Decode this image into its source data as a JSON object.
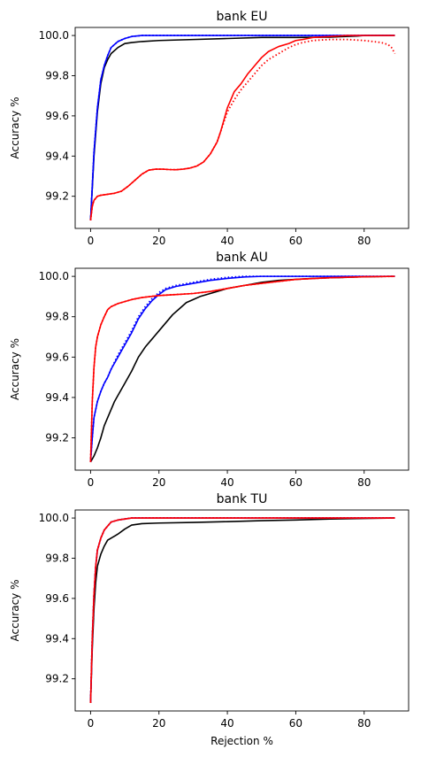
{
  "chart_data": [
    {
      "type": "line",
      "title": "bank EU",
      "xlabel": "",
      "ylabel": "Accuracy %",
      "xlim": [
        -4.5,
        93
      ],
      "ylim": [
        99.04,
        100.04
      ],
      "xticks": [
        0,
        20,
        40,
        60,
        80
      ],
      "yticks": [
        99.2,
        99.4,
        99.6,
        99.8,
        100.0
      ],
      "ytick_labels": [
        "99.2",
        "99.4",
        "99.6",
        "99.8",
        "100.0"
      ],
      "grid": false,
      "series": [
        {
          "color": "#000000",
          "style": "solid",
          "x": [
            0,
            1,
            2,
            3,
            4,
            5,
            6,
            8,
            10,
            12,
            15,
            20,
            30,
            40,
            50,
            60,
            70,
            78,
            80,
            89
          ],
          "y": [
            99.08,
            99.4,
            99.62,
            99.76,
            99.84,
            99.88,
            99.91,
            99.94,
            99.96,
            99.965,
            99.97,
            99.975,
            99.98,
            99.985,
            99.99,
            99.99,
            99.992,
            99.997,
            100.0,
            100.0
          ]
        },
        {
          "color": "#0000ff",
          "style": "solid",
          "x": [
            0,
            1,
            2,
            3,
            4,
            5,
            6,
            8,
            10,
            12,
            15,
            20,
            30,
            89
          ],
          "y": [
            99.08,
            99.42,
            99.64,
            99.78,
            99.85,
            99.9,
            99.94,
            99.97,
            99.985,
            99.995,
            100.0,
            100.0,
            100.0,
            100.0
          ]
        },
        {
          "color": "#0000ff",
          "style": "dotted",
          "x": [
            0,
            1,
            2,
            3,
            4,
            5,
            6,
            8,
            10,
            12,
            15,
            20,
            30,
            89
          ],
          "y": [
            99.08,
            99.42,
            99.64,
            99.78,
            99.85,
            99.9,
            99.94,
            99.97,
            99.985,
            99.995,
            100.0,
            100.0,
            100.0,
            100.0
          ]
        },
        {
          "color": "#ff0000",
          "style": "solid",
          "x": [
            0,
            0.5,
            1,
            2,
            3,
            5,
            7,
            9,
            11,
            13,
            15,
            17,
            19,
            21,
            23,
            25,
            27,
            29,
            31,
            33,
            35,
            36,
            37,
            38,
            39,
            40,
            42,
            44,
            46,
            48,
            50,
            52,
            55,
            58,
            60,
            62,
            65,
            70,
            75,
            80,
            85,
            89
          ],
          "y": [
            99.08,
            99.15,
            99.18,
            99.2,
            99.205,
            99.21,
            99.215,
            99.225,
            99.25,
            99.28,
            99.31,
            99.33,
            99.335,
            99.335,
            99.333,
            99.332,
            99.335,
            99.34,
            99.35,
            99.37,
            99.41,
            99.44,
            99.47,
            99.52,
            99.58,
            99.64,
            99.72,
            99.76,
            99.81,
            99.85,
            99.89,
            99.92,
            99.945,
            99.96,
            99.975,
            99.98,
            99.99,
            99.995,
            100.0,
            100.0,
            100.0,
            100.0
          ]
        },
        {
          "color": "#ff0000",
          "style": "dotted",
          "x": [
            0,
            0.5,
            1,
            2,
            3,
            5,
            7,
            9,
            11,
            13,
            15,
            17,
            19,
            21,
            23,
            25,
            27,
            29,
            31,
            33,
            35,
            36,
            37,
            38,
            39,
            40,
            42,
            44,
            46,
            48,
            50,
            52,
            55,
            58,
            60,
            62,
            65,
            70,
            75,
            80,
            85,
            87,
            88,
            89
          ],
          "y": [
            99.08,
            99.15,
            99.18,
            99.2,
            99.205,
            99.21,
            99.215,
            99.225,
            99.25,
            99.28,
            99.31,
            99.33,
            99.335,
            99.335,
            99.333,
            99.332,
            99.335,
            99.34,
            99.35,
            99.37,
            99.41,
            99.44,
            99.47,
            99.52,
            99.57,
            99.62,
            99.68,
            99.73,
            99.77,
            99.81,
            99.85,
            99.88,
            99.91,
            99.94,
            99.955,
            99.965,
            99.975,
            99.98,
            99.98,
            99.975,
            99.965,
            99.955,
            99.94,
            99.91
          ]
        }
      ]
    },
    {
      "type": "line",
      "title": "bank AU",
      "xlabel": "",
      "ylabel": "Accuracy %",
      "xlim": [
        -4.5,
        93
      ],
      "ylim": [
        99.04,
        100.04
      ],
      "xticks": [
        0,
        20,
        40,
        60,
        80
      ],
      "yticks": [
        99.2,
        99.4,
        99.6,
        99.8,
        100.0
      ],
      "ytick_labels": [
        "99.2",
        "99.4",
        "99.6",
        "99.8",
        "100.0"
      ],
      "grid": false,
      "series": [
        {
          "color": "#000000",
          "style": "solid",
          "x": [
            0,
            1,
            2,
            3,
            4,
            5,
            6,
            7,
            8,
            10,
            12,
            14,
            16,
            18,
            20,
            22,
            24,
            26,
            28,
            30,
            32,
            35,
            38,
            40,
            45,
            50,
            55,
            60,
            65,
            70,
            75,
            80,
            89
          ],
          "y": [
            99.08,
            99.11,
            99.15,
            99.2,
            99.26,
            99.3,
            99.34,
            99.38,
            99.41,
            99.47,
            99.53,
            99.6,
            99.65,
            99.69,
            99.73,
            99.77,
            99.81,
            99.84,
            99.87,
            99.885,
            99.9,
            99.915,
            99.93,
            99.94,
            99.955,
            99.97,
            99.98,
            99.985,
            99.99,
            99.993,
            99.995,
            99.998,
            100.0
          ]
        },
        {
          "color": "#0000ff",
          "style": "solid",
          "x": [
            0,
            0.5,
            1,
            2,
            3,
            4,
            5,
            6,
            8,
            10,
            12,
            14,
            16,
            18,
            20,
            22,
            25,
            30,
            35,
            40,
            45,
            50,
            60,
            89
          ],
          "y": [
            99.08,
            99.2,
            99.3,
            99.38,
            99.43,
            99.47,
            99.5,
            99.54,
            99.6,
            99.66,
            99.72,
            99.79,
            99.84,
            99.88,
            99.91,
            99.935,
            99.95,
            99.965,
            99.98,
            99.99,
            99.997,
            100.0,
            100.0,
            100.0
          ]
        },
        {
          "color": "#0000ff",
          "style": "dotted",
          "x": [
            0,
            0.5,
            1,
            2,
            3,
            4,
            5,
            6,
            8,
            10,
            12,
            14,
            16,
            18,
            20,
            22,
            25,
            30,
            35,
            40,
            45,
            50,
            60,
            89
          ],
          "y": [
            99.08,
            99.2,
            99.3,
            99.38,
            99.43,
            99.47,
            99.5,
            99.54,
            99.61,
            99.67,
            99.73,
            99.8,
            99.85,
            99.89,
            99.92,
            99.94,
            99.955,
            99.97,
            99.985,
            99.995,
            100.0,
            100.0,
            100.0,
            100.0
          ]
        },
        {
          "color": "#ff0000",
          "style": "solid",
          "x": [
            0,
            0.5,
            1,
            1.5,
            2,
            3,
            4,
            5,
            6,
            8,
            10,
            12,
            15,
            20,
            25,
            30,
            35,
            40,
            45,
            50,
            55,
            60,
            70,
            80,
            89
          ],
          "y": [
            99.08,
            99.38,
            99.55,
            99.65,
            99.7,
            99.76,
            99.8,
            99.835,
            99.85,
            99.865,
            99.875,
            99.885,
            99.895,
            99.905,
            99.91,
            99.915,
            99.925,
            99.94,
            99.955,
            99.965,
            99.975,
            99.985,
            99.993,
            99.998,
            100.0
          ]
        },
        {
          "color": "#ff0000",
          "style": "dotted",
          "x": [
            0,
            0.5,
            1,
            1.5,
            2,
            3,
            4,
            5,
            6,
            8,
            10,
            12,
            15,
            20,
            25,
            30,
            35,
            40,
            45,
            50,
            55,
            60,
            70,
            80,
            89
          ],
          "y": [
            99.08,
            99.38,
            99.55,
            99.65,
            99.7,
            99.76,
            99.8,
            99.835,
            99.85,
            99.865,
            99.875,
            99.885,
            99.895,
            99.905,
            99.91,
            99.915,
            99.925,
            99.94,
            99.955,
            99.965,
            99.975,
            99.985,
            99.993,
            99.998,
            100.0
          ]
        }
      ]
    },
    {
      "type": "line",
      "title": "bank TU",
      "xlabel": "Rejection %",
      "ylabel": "Accuracy %",
      "xlim": [
        -4.5,
        93
      ],
      "ylim": [
        99.04,
        100.04
      ],
      "xticks": [
        0,
        20,
        40,
        60,
        80
      ],
      "yticks": [
        99.2,
        99.4,
        99.6,
        99.8,
        100.0
      ],
      "ytick_labels": [
        "99.2",
        "99.4",
        "99.6",
        "99.8",
        "100.0"
      ],
      "grid": false,
      "series": [
        {
          "color": "#000000",
          "style": "solid",
          "x": [
            0,
            0.5,
            1,
            1.5,
            2,
            3,
            4,
            5,
            6,
            7,
            8,
            10,
            12,
            15,
            20,
            30,
            40,
            50,
            60,
            70,
            80,
            89
          ],
          "y": [
            99.08,
            99.35,
            99.55,
            99.68,
            99.76,
            99.82,
            99.86,
            99.89,
            99.9,
            99.91,
            99.92,
            99.945,
            99.965,
            99.972,
            99.975,
            99.978,
            99.982,
            99.987,
            99.99,
            99.995,
            99.998,
            100.0
          ]
        },
        {
          "color": "#0000ff",
          "style": "solid",
          "x": [
            0,
            0.5,
            1,
            1.5,
            2,
            3,
            4,
            5,
            6,
            8,
            10,
            12,
            15,
            20,
            89
          ],
          "y": [
            99.08,
            99.4,
            99.62,
            99.76,
            99.84,
            99.9,
            99.94,
            99.96,
            99.98,
            99.99,
            99.995,
            100.0,
            100.0,
            100.0,
            100.0
          ]
        },
        {
          "color": "#0000ff",
          "style": "dotted",
          "x": [
            0,
            0.5,
            1,
            1.5,
            2,
            3,
            4,
            5,
            6,
            8,
            10,
            12,
            15,
            20,
            89
          ],
          "y": [
            99.08,
            99.4,
            99.62,
            99.76,
            99.84,
            99.9,
            99.94,
            99.96,
            99.98,
            99.99,
            99.995,
            100.0,
            100.0,
            100.0,
            100.0
          ]
        },
        {
          "color": "#ff0000",
          "style": "solid",
          "x": [
            0,
            0.5,
            1,
            1.5,
            2,
            3,
            4,
            5,
            6,
            8,
            10,
            12,
            15,
            20,
            89
          ],
          "y": [
            99.08,
            99.4,
            99.62,
            99.76,
            99.84,
            99.9,
            99.94,
            99.96,
            99.98,
            99.99,
            99.995,
            100.0,
            100.0,
            100.0,
            100.0
          ]
        },
        {
          "color": "#ff0000",
          "style": "dotted",
          "x": [
            0,
            0.5,
            1,
            1.5,
            2,
            3,
            4,
            5,
            6,
            8,
            10,
            12,
            15,
            20,
            89
          ],
          "y": [
            99.08,
            99.4,
            99.62,
            99.76,
            99.84,
            99.9,
            99.94,
            99.96,
            99.98,
            99.99,
            99.995,
            100.0,
            100.0,
            100.0,
            100.0
          ]
        }
      ]
    }
  ]
}
